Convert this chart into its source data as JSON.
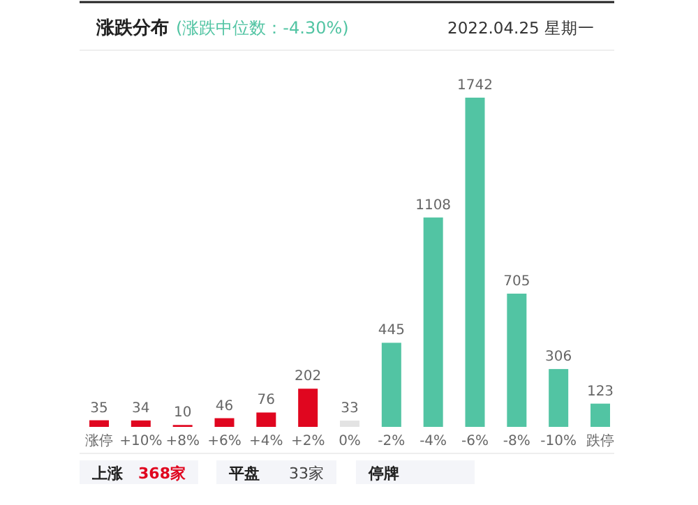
{
  "chart_data": {
    "type": "bar",
    "title": "涨跌分布",
    "subtitle": "(涨跌中位数：-4.30%)",
    "annotations": [
      "2022.04.25 星期一",
      "上涨",
      "368家",
      "平盘",
      "33家",
      "停牌"
    ],
    "categories": [
      "涨停",
      "+10%",
      "+8%",
      "+6%",
      "+4%",
      "+2%",
      "0%",
      "-2%",
      "-4%",
      "-6%",
      "-8%",
      "-10%",
      "跌停"
    ],
    "values": [
      35,
      34,
      10,
      46,
      76,
      202,
      33,
      445,
      1108,
      1742,
      705,
      306,
      123
    ],
    "colors": [
      "#e0061f",
      "#e0061f",
      "#e0061f",
      "#e0061f",
      "#e0061f",
      "#e0061f",
      "#e3e3e3",
      "#52c4a3",
      "#52c4a3",
      "#52c4a3",
      "#52c4a3",
      "#52c4a3",
      "#52c4a3"
    ],
    "data_labels": true
  }
}
